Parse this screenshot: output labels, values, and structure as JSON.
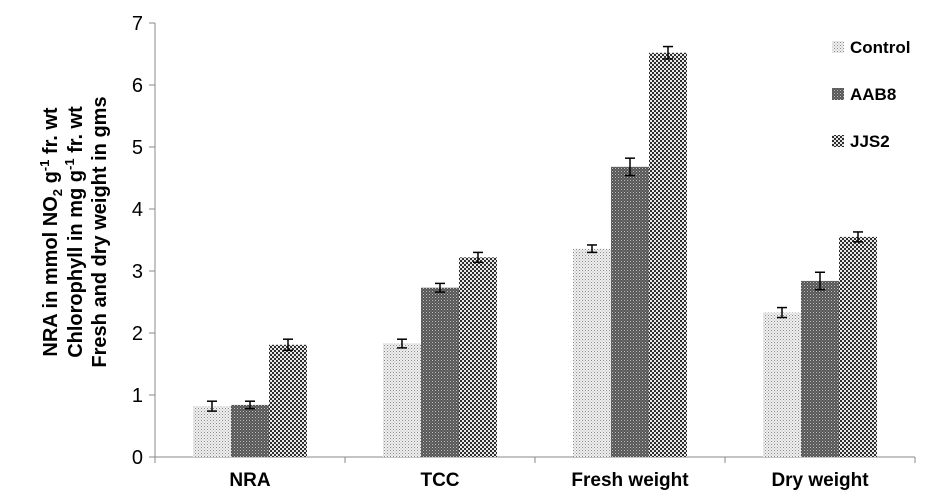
{
  "chart_data": {
    "type": "bar",
    "categories": [
      "NRA",
      "TCC",
      "Fresh weight",
      "Dry weight"
    ],
    "series": [
      {
        "name": "Control",
        "values": [
          0.82,
          1.83,
          3.36,
          2.33
        ],
        "errors": [
          0.08,
          0.07,
          0.06,
          0.08
        ],
        "pattern": "light-dots"
      },
      {
        "name": "AAB8",
        "values": [
          0.84,
          2.73,
          4.68,
          2.84
        ],
        "errors": [
          0.06,
          0.07,
          0.14,
          0.14
        ],
        "pattern": "dense-dots"
      },
      {
        "name": "JJS2",
        "values": [
          1.81,
          3.22,
          6.52,
          3.55
        ],
        "errors": [
          0.09,
          0.08,
          0.1,
          0.08
        ],
        "pattern": "checker"
      }
    ],
    "ylim": [
      0,
      7
    ],
    "yticks": [
      0,
      1,
      2,
      3,
      4,
      5,
      6,
      7
    ],
    "ylabel_lines": [
      "NRA  in mmol NO<sub>2</sub> g<sup>-1</sup> fr. wt",
      "Chlorophyll in mg g<sup>-1</sup> fr. wt",
      "Fresh and dry weight in gms"
    ],
    "legend_position": "top-right",
    "grid": false
  },
  "colors": {
    "control": "#c8c8c8",
    "aab8": "#6e6e6e",
    "jjs2": "#3c3c3c",
    "axis": "#888888"
  }
}
